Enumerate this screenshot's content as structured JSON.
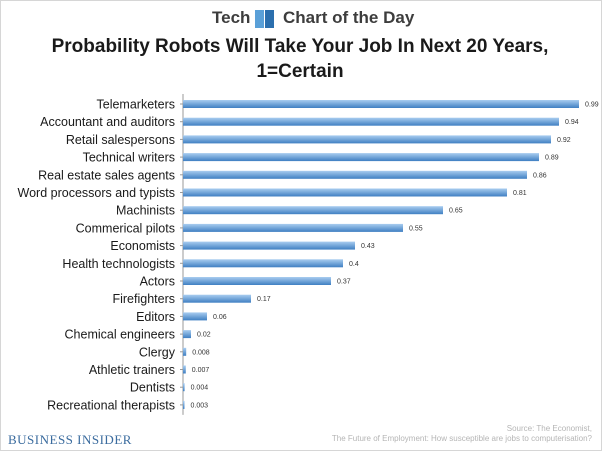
{
  "header": {
    "tech": "Tech",
    "chart_of_day": "Chart of the Day"
  },
  "footer": {
    "brand": "BUSINESS INSIDER",
    "source_line1": "Source: The Economist,",
    "source_line2": "The Future of Employment: How susceptible are jobs to computerisation?"
  },
  "colors": {
    "bar_top": "#a9cdf0",
    "bar_bottom": "#3f7fc2",
    "axis": "#9a9a9a"
  },
  "chart_data": {
    "type": "bar",
    "orientation": "horizontal",
    "title": "Probability Robots Will Take Your Job In Next 20 Years, 1=Certain",
    "categories": [
      "Telemarketers",
      "Accountant and auditors",
      "Retail salespersons",
      "Technical writers",
      "Real estate sales agents",
      "Word processors and typists",
      "Machinists",
      "Commerical pilots",
      "Economists",
      "Health technologists",
      "Actors",
      "Firefighters",
      "Editors",
      "Chemical engineers",
      "Clergy",
      "Athletic trainers",
      "Dentists",
      "Recreational therapists"
    ],
    "values": [
      0.99,
      0.94,
      0.92,
      0.89,
      0.86,
      0.81,
      0.65,
      0.55,
      0.43,
      0.4,
      0.37,
      0.17,
      0.06,
      0.02,
      0.008,
      0.007,
      0.004,
      0.003
    ],
    "value_labels": [
      "0.99",
      "0.94",
      "0.92",
      "0.89",
      "0.86",
      "0.81",
      "0.65",
      "0.55",
      "0.43",
      "0.4",
      "0.37",
      "0.17",
      "0.06",
      "0.02",
      "0.008",
      "0.007",
      "0.004",
      "0.003"
    ],
    "xlim": [
      0,
      1
    ],
    "grid": false,
    "legend": "none"
  }
}
